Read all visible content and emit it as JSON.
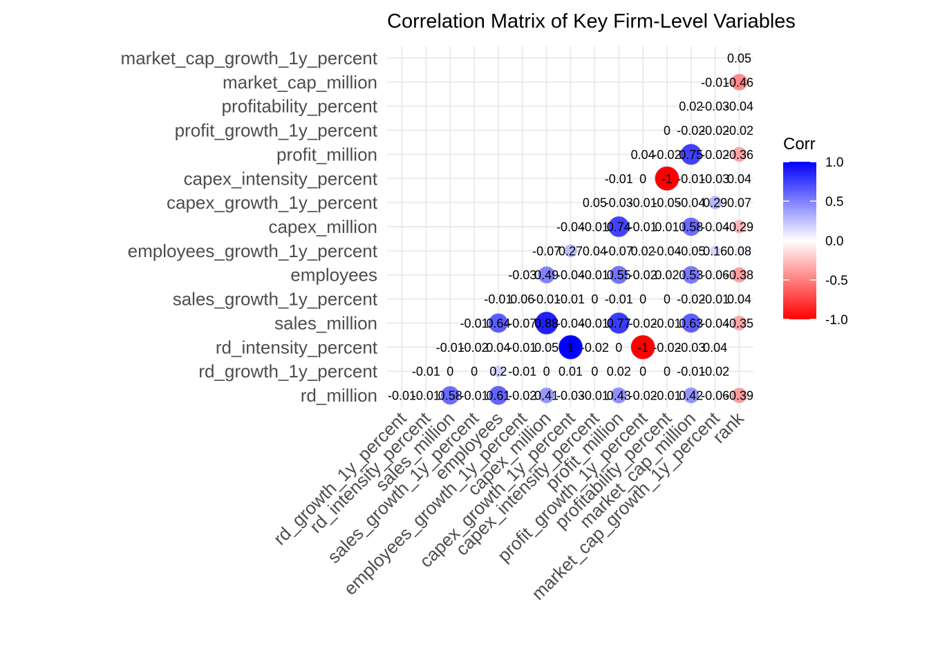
{
  "chart_data": {
    "type": "heatmap",
    "title": "Correlation Matrix of Key Firm-Level Variables",
    "xlabel": "",
    "ylabel": "",
    "y_categories": [
      "rd_million",
      "rd_growth_1y_percent",
      "rd_intensity_percent",
      "sales_million",
      "sales_growth_1y_percent",
      "employees",
      "employees_growth_1y_percent",
      "capex_million",
      "capex_growth_1y_percent",
      "capex_intensity_percent",
      "profit_million",
      "profit_growth_1y_percent",
      "profitability_percent",
      "market_cap_million",
      "market_cap_growth_1y_percent"
    ],
    "x_categories": [
      "rd_growth_1y_percent",
      "rd_intensity_percent",
      "sales_million",
      "sales_growth_1y_percent",
      "employees",
      "employees_growth_1y_percent",
      "capex_million",
      "capex_growth_1y_percent",
      "capex_intensity_percent",
      "profit_million",
      "profit_growth_1y_percent",
      "profitability_percent",
      "market_cap_million",
      "market_cap_growth_1y_percent",
      "rank"
    ],
    "matrix": [
      [
        -0.01,
        -0.01,
        0.58,
        -0.01,
        0.61,
        -0.02,
        0.41,
        -0.03,
        -0.01,
        0.43,
        -0.02,
        -0.01,
        0.42,
        -0.06,
        -0.39
      ],
      [
        null,
        -0.01,
        0,
        0,
        0.2,
        -0.01,
        0,
        0.01,
        0,
        0.02,
        0,
        0,
        -0.01,
        -0.02,
        null
      ],
      [
        null,
        null,
        -0.01,
        -0.02,
        0.04,
        -0.01,
        0.05,
        1,
        -0.02,
        0,
        -1,
        -0.02,
        -0.03,
        0.04,
        null
      ],
      [
        null,
        null,
        null,
        -0.01,
        0.64,
        -0.07,
        0.88,
        -0.04,
        -0.01,
        0.77,
        -0.02,
        -0.01,
        0.63,
        -0.04,
        -0.35
      ],
      [
        null,
        null,
        null,
        null,
        -0.01,
        0.06,
        -0.01,
        -0.01,
        0,
        -0.01,
        0,
        0,
        -0.02,
        -0.01,
        0.04
      ],
      [
        null,
        null,
        null,
        null,
        null,
        -0.03,
        0.49,
        -0.04,
        -0.01,
        0.55,
        -0.02,
        0.02,
        0.53,
        -0.06,
        -0.38
      ],
      [
        null,
        null,
        null,
        null,
        null,
        null,
        -0.07,
        0.27,
        0.04,
        -0.07,
        0.02,
        -0.04,
        -0.05,
        0.16,
        0.08
      ],
      [
        null,
        null,
        null,
        null,
        null,
        null,
        null,
        -0.04,
        -0.01,
        0.74,
        -0.01,
        0.01,
        0.58,
        -0.04,
        -0.29
      ],
      [
        null,
        null,
        null,
        null,
        null,
        null,
        null,
        null,
        0.05,
        -0.03,
        -0.01,
        -0.05,
        -0.04,
        0.29,
        0.07
      ],
      [
        null,
        null,
        null,
        null,
        null,
        null,
        null,
        null,
        null,
        -0.01,
        0,
        -1,
        -0.01,
        -0.03,
        0.04
      ],
      [
        null,
        null,
        null,
        null,
        null,
        null,
        null,
        null,
        null,
        null,
        0.04,
        -0.02,
        0.75,
        -0.02,
        -0.36
      ],
      [
        null,
        null,
        null,
        null,
        null,
        null,
        null,
        null,
        null,
        null,
        null,
        0,
        -0.02,
        -0.02,
        -0.02
      ],
      [
        null,
        null,
        null,
        null,
        null,
        null,
        null,
        null,
        null,
        null,
        null,
        null,
        0.02,
        -0.03,
        -0.04
      ],
      [
        null,
        null,
        null,
        null,
        null,
        null,
        null,
        null,
        null,
        null,
        null,
        null,
        null,
        -0.01,
        -0.46
      ],
      [
        null,
        null,
        null,
        null,
        null,
        null,
        null,
        null,
        null,
        null,
        null,
        null,
        null,
        null,
        0.05
      ]
    ],
    "value_range": [
      -1,
      1
    ],
    "legend": {
      "title": "Corr",
      "position": "right",
      "ticks": [
        "1.0",
        "0.5",
        "0.0",
        "-0.5",
        "-1.0"
      ]
    },
    "colors": {
      "high": "#0000ff",
      "mid": "#ffffff",
      "low": "#ff0000",
      "grid": "#ebebeb"
    },
    "grid": true,
    "marker": "circle"
  }
}
